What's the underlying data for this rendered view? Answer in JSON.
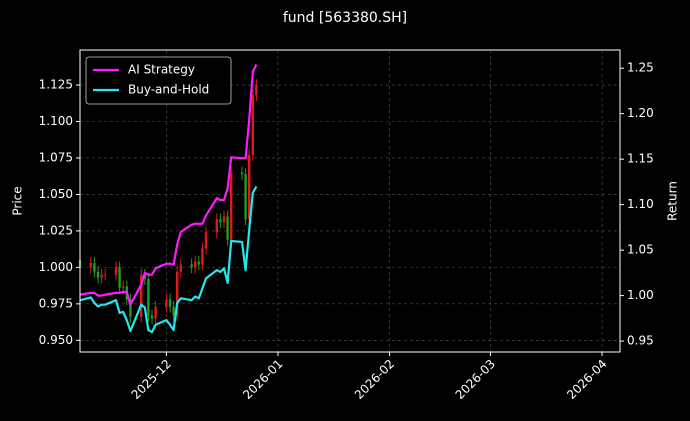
{
  "chart_data": {
    "type": "candlestick",
    "title": "fund [563380.SH]",
    "ylabel": "Price",
    "y2label": "Return",
    "x": [
      "2025-11-07",
      "2025-11-10",
      "2025-11-11",
      "2025-11-12",
      "2025-11-13",
      "2025-11-14",
      "2025-11-17",
      "2025-11-18",
      "2025-11-19",
      "2025-11-20",
      "2025-11-21",
      "2025-11-24",
      "2025-11-25",
      "2025-11-26",
      "2025-11-27",
      "2025-11-28",
      "2025-12-01",
      "2025-12-02",
      "2025-12-03",
      "2025-12-04",
      "2025-12-05",
      "2025-12-08",
      "2025-12-09",
      "2025-12-10",
      "2025-12-11",
      "2025-12-12",
      "2025-12-15",
      "2025-12-16",
      "2025-12-17",
      "2025-12-18",
      "2025-12-19",
      "2025-12-22",
      "2025-12-23",
      "2025-12-24",
      "2025-12-25",
      "2025-12-26"
    ],
    "ohlc": {
      "up_color": "#e0191e",
      "down_color": "#1f9e1f",
      "open": [
        1.005,
        1.0,
        1.003,
        0.997,
        0.993,
        0.995,
        0.995,
        1.0,
        0.986,
        0.987,
        0.978,
        0.966,
        0.995,
        0.992,
        0.967,
        0.965,
        0.973,
        0.978,
        0.973,
        0.967,
        0.997,
        1.002,
        1.0,
        1.004,
        1.002,
        1.013,
        1.024,
        1.033,
        1.031,
        1.035,
        1.019,
        1.065,
        1.064,
        1.033,
        1.077,
        1.118
      ],
      "high": [
        1.009,
        1.007,
        1.007,
        1.001,
        0.999,
        0.999,
        1.004,
        1.004,
        0.991,
        0.991,
        0.982,
        0.999,
        0.999,
        0.996,
        0.971,
        0.977,
        0.982,
        0.982,
        0.977,
        1.001,
        1.006,
        1.006,
        1.008,
        1.008,
        1.017,
        1.028,
        1.037,
        1.037,
        1.039,
        1.039,
        1.069,
        1.069,
        1.068,
        1.081,
        1.122,
        1.129
      ],
      "low": [
        0.996,
        0.996,
        0.993,
        0.989,
        0.989,
        0.991,
        0.991,
        0.982,
        0.982,
        0.974,
        0.962,
        0.962,
        0.988,
        0.963,
        0.961,
        0.961,
        0.969,
        0.969,
        0.963,
        0.963,
        0.993,
        0.996,
        0.996,
        0.998,
        0.998,
        1.009,
        1.02,
        1.027,
        1.027,
        1.015,
        1.015,
        1.06,
        1.029,
        1.029,
        1.073,
        1.114
      ],
      "close": [
        1.0,
        1.003,
        0.997,
        0.993,
        0.995,
        0.995,
        1.0,
        0.986,
        0.987,
        0.978,
        0.966,
        0.995,
        0.992,
        0.967,
        0.965,
        0.973,
        0.978,
        0.973,
        0.967,
        0.997,
        1.002,
        1.0,
        1.004,
        1.002,
        1.013,
        1.024,
        1.033,
        1.031,
        1.035,
        1.019,
        1.065,
        1.064,
        1.033,
        1.077,
        1.118,
        1.125
      ]
    },
    "series": [
      {
        "name": "AI Strategy",
        "color": "#ff1aff",
        "axis": "y2",
        "values": [
          1.001,
          1.003,
          1.003,
          1.0,
          1.0,
          1.001,
          1.003,
          1.003,
          1.004,
          1.004,
          0.99,
          1.012,
          1.025,
          1.023,
          1.023,
          1.03,
          1.035,
          1.035,
          1.034,
          1.056,
          1.07,
          1.078,
          1.079,
          1.079,
          1.079,
          1.088,
          1.107,
          1.105,
          1.105,
          1.118,
          1.152,
          1.151,
          1.151,
          1.193,
          1.246,
          1.254
        ]
      },
      {
        "name": "Buy-and-Hold",
        "color": "#22e8f0",
        "axis": "y2",
        "values": [
          0.995,
          0.998,
          0.992,
          0.988,
          0.99,
          0.99,
          0.995,
          0.981,
          0.982,
          0.973,
          0.961,
          0.99,
          0.987,
          0.962,
          0.96,
          0.968,
          0.973,
          0.968,
          0.962,
          0.992,
          0.997,
          0.995,
          0.999,
          0.997,
          1.008,
          1.019,
          1.028,
          1.026,
          1.03,
          1.014,
          1.06,
          1.059,
          1.028,
          1.072,
          1.113,
          1.12
        ]
      }
    ],
    "xlim": [
      "2025-11-07",
      "2026-04-06"
    ],
    "xticks": [
      {
        "value": "2025-12-01",
        "label": "2025-12"
      },
      {
        "value": "2026-01-01",
        "label": "2026-01"
      },
      {
        "value": "2026-02-01",
        "label": "2026-02"
      },
      {
        "value": "2026-03-01",
        "label": "2026-03"
      },
      {
        "value": "2026-04-01",
        "label": "2026-04"
      }
    ],
    "ylim": [
      0.942,
      1.149
    ],
    "yticks": [
      {
        "value": 0.95,
        "label": "0.950"
      },
      0.975,
      {
        "value": 1.0,
        "label": "1.000"
      },
      1.025,
      {
        "value": 1.05,
        "label": "1.050"
      },
      1.075,
      {
        "value": 1.1,
        "label": "1.100"
      },
      1.125
    ],
    "y2lim": [
      0.938,
      1.27
    ],
    "y2ticks": [
      0.95,
      {
        "value": 1.0,
        "label": "1.00"
      },
      1.05,
      {
        "value": 1.1,
        "label": "1.10"
      },
      1.15,
      {
        "value": 1.2,
        "label": "1.20"
      },
      1.25
    ],
    "grid": true,
    "legend": "upper left"
  }
}
